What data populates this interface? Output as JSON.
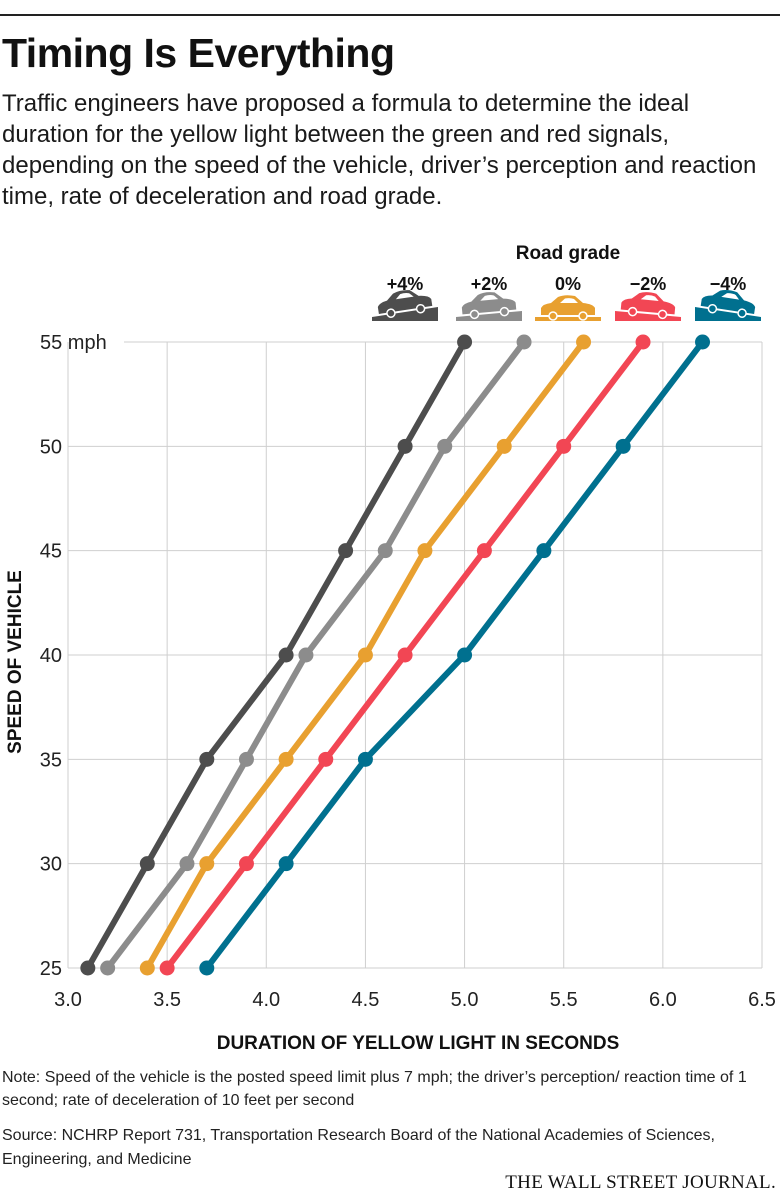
{
  "header": {
    "title": "Timing Is Everything",
    "subtitle": "Traffic engineers have proposed a formula to determine the ideal duration for the yellow light between the green and red signals, depending on the speed of the vehicle, driver’s perception and reaction time, rate of deceleration and road grade."
  },
  "footer": {
    "note": "Note: Speed of the vehicle is the posted speed limit plus 7 mph; the driver’s perception/ reaction time of 1 second; rate of deceleration of 10 feet per second",
    "source": "Source: NCHRP Report 731, Transportation Research Board of the National Academies of Sciences, Engineering, and Medicine",
    "publisher": "THE WALL STREET JOURNAL."
  },
  "chart_data": {
    "type": "line",
    "xlabel": "DURATION OF YELLOW LIGHT IN SECONDS",
    "ylabel": "SPEED OF VEHICLE",
    "xlim": [
      3.0,
      6.5
    ],
    "ylim": [
      25,
      55
    ],
    "x_ticks": [
      3.0,
      3.5,
      4.0,
      4.5,
      5.0,
      5.5,
      6.0,
      6.5
    ],
    "x_tick_labels": [
      "3.0",
      "3.5",
      "4.0",
      "4.5",
      "5.0",
      "5.5",
      "6.0",
      "6.5"
    ],
    "y_ticks": [
      25,
      30,
      35,
      40,
      45,
      50,
      55
    ],
    "y_tick_labels": [
      "25",
      "30",
      "35",
      "40",
      "45",
      "50",
      "55 mph"
    ],
    "grid": true,
    "legend_title": "Road grade",
    "legend_position": "top-right",
    "speeds": [
      25,
      30,
      35,
      40,
      45,
      50,
      55
    ],
    "series": [
      {
        "name": "+4%",
        "color": "#4d4d4d",
        "icon": "car-uphill-steep-icon",
        "values": [
          3.1,
          3.4,
          3.7,
          4.1,
          4.4,
          4.7,
          5.0
        ]
      },
      {
        "name": "+2%",
        "color": "#8c8c8c",
        "icon": "car-uphill-icon",
        "values": [
          3.2,
          3.6,
          3.9,
          4.2,
          4.6,
          4.9,
          5.3
        ]
      },
      {
        "name": "0%",
        "color": "#e8a030",
        "icon": "car-flat-icon",
        "values": [
          3.4,
          3.7,
          4.1,
          4.5,
          4.8,
          5.2,
          5.6
        ]
      },
      {
        "name": "−2%",
        "color": "#f24654",
        "icon": "car-downhill-icon",
        "values": [
          3.5,
          3.9,
          4.3,
          4.7,
          5.1,
          5.5,
          5.9
        ]
      },
      {
        "name": "−4%",
        "color": "#00708f",
        "icon": "car-downhill-steep-icon",
        "values": [
          3.7,
          4.1,
          4.5,
          5.0,
          5.4,
          5.8,
          6.2
        ]
      }
    ]
  }
}
